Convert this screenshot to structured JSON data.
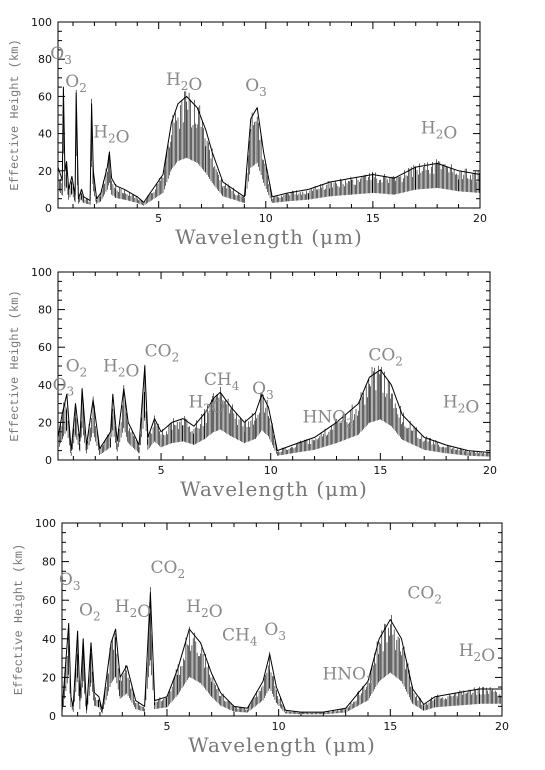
{
  "chart_data": [
    {
      "type": "line",
      "xlabel": "Wavelength (μm)",
      "ylabel": "Effective Height (km)",
      "xlim": [
        0.3,
        20
      ],
      "ylim": [
        0,
        100
      ],
      "xticks": [
        5,
        10,
        15,
        20
      ],
      "yticks": [
        0,
        20,
        40,
        60,
        80,
        100
      ],
      "series": [
        {
          "x": [
            0.3,
            0.5,
            0.55,
            0.62,
            0.7,
            0.8,
            0.95,
            1.1,
            1.15,
            1.25,
            1.4,
            1.5,
            1.8,
            1.87,
            1.95,
            2.1,
            2.3,
            2.6,
            2.7,
            2.8,
            3.0,
            3.4,
            4.0,
            4.3,
            4.6,
            5.2,
            5.6,
            5.9,
            6.3,
            6.8,
            7.2,
            7.5,
            8.0,
            9.0,
            9.3,
            9.6,
            9.9,
            10.3,
            11,
            12,
            13,
            14,
            15,
            16,
            17,
            18,
            19,
            20
          ],
          "y": [
            22,
            15,
            65,
            20,
            25,
            10,
            17,
            7,
            62,
            5,
            10,
            6,
            4,
            56,
            20,
            5,
            8,
            22,
            30,
            16,
            12,
            10,
            6,
            3,
            8,
            18,
            46,
            56,
            60,
            54,
            42,
            30,
            14,
            6,
            48,
            54,
            30,
            6,
            8,
            10,
            14,
            16,
            18,
            16,
            22,
            24,
            20,
            18
          ]
        }
      ],
      "annotations": [
        {
          "text": "O3",
          "x": 0.5,
          "y": 80
        },
        {
          "text": "O2",
          "x": 1.2,
          "y": 65
        },
        {
          "text": "H2O",
          "x": 2.5,
          "y": 38
        },
        {
          "text": "H2O",
          "x": 5.9,
          "y": 66
        },
        {
          "text": "O3",
          "x": 9.6,
          "y": 63
        },
        {
          "text": "H2O",
          "x": 17.8,
          "y": 40
        }
      ]
    },
    {
      "type": "line",
      "xlabel": "Wavelength (μm)",
      "ylabel": "Effective Height (km)",
      "xlim": [
        0.3,
        20
      ],
      "ylim": [
        0,
        100
      ],
      "xticks": [
        5,
        10,
        15,
        20
      ],
      "yticks": [
        0,
        20,
        40,
        60,
        80,
        100
      ],
      "series": [
        {
          "x": [
            0.3,
            0.5,
            0.7,
            0.9,
            1.1,
            1.3,
            1.4,
            1.6,
            1.9,
            2.2,
            2.7,
            2.8,
            3.0,
            3.3,
            3.5,
            4.0,
            4.26,
            4.4,
            4.7,
            5.0,
            5.5,
            6.0,
            6.5,
            7.0,
            7.4,
            7.7,
            8.2,
            8.8,
            9.3,
            9.6,
            9.9,
            10.3,
            11,
            12,
            13,
            14,
            14.5,
            15,
            15.5,
            16,
            17,
            18,
            19,
            20
          ],
          "y": [
            12,
            25,
            35,
            5,
            30,
            10,
            38,
            8,
            32,
            6,
            15,
            35,
            10,
            38,
            20,
            8,
            50,
            12,
            22,
            15,
            20,
            22,
            18,
            25,
            33,
            36,
            28,
            20,
            25,
            35,
            28,
            5,
            8,
            12,
            20,
            30,
            44,
            48,
            40,
            24,
            12,
            8,
            5,
            4
          ]
        }
      ],
      "annotations": [
        {
          "text": "O2",
          "x": 1.2,
          "y": 47
        },
        {
          "text": "O3",
          "x": 0.6,
          "y": 37
        },
        {
          "text": "H2O",
          "x": 2.9,
          "y": 47
        },
        {
          "text": "CO2",
          "x": 4.8,
          "y": 55
        },
        {
          "text": "H2O",
          "x": 6.8,
          "y": 28
        },
        {
          "text": "CH4",
          "x": 7.5,
          "y": 40
        },
        {
          "text": "O3",
          "x": 9.7,
          "y": 35
        },
        {
          "text": "HNO3",
          "x": 12.0,
          "y": 20
        },
        {
          "text": "CO2",
          "x": 15.0,
          "y": 53
        },
        {
          "text": "H2O",
          "x": 18.4,
          "y": 28
        }
      ]
    },
    {
      "type": "line",
      "xlabel": "Wavelength (μm)",
      "ylabel": "Effective Height (km)",
      "xlim": [
        0.3,
        20
      ],
      "ylim": [
        0,
        100
      ],
      "xticks": [
        5,
        10,
        15,
        20
      ],
      "yticks": [
        0,
        20,
        40,
        60,
        80,
        100
      ],
      "series": [
        {
          "x": [
            0.3,
            0.6,
            0.7,
            0.8,
            1.0,
            1.1,
            1.25,
            1.4,
            1.6,
            1.75,
            1.95,
            2.1,
            2.5,
            2.7,
            2.9,
            3.2,
            3.6,
            4.0,
            4.26,
            4.45,
            5.0,
            5.5,
            6.0,
            6.5,
            7.0,
            7.4,
            8.0,
            8.6,
            9.3,
            9.6,
            9.9,
            10.3,
            11,
            12,
            13,
            14,
            14.5,
            15,
            15.5,
            16,
            16.5,
            17,
            18,
            19,
            20
          ],
          "y": [
            2,
            48,
            10,
            5,
            44,
            8,
            40,
            3,
            38,
            12,
            10,
            3,
            38,
            45,
            20,
            26,
            8,
            5,
            64,
            8,
            10,
            25,
            45,
            38,
            22,
            12,
            5,
            4,
            18,
            32,
            15,
            3,
            2,
            2,
            4,
            18,
            40,
            50,
            40,
            14,
            6,
            10,
            12,
            14,
            14
          ]
        }
      ],
      "annotations": [
        {
          "text": "O3",
          "x": 0.7,
          "y": 68
        },
        {
          "text": "O2",
          "x": 1.6,
          "y": 52
        },
        {
          "text": "H2O",
          "x": 3.2,
          "y": 54
        },
        {
          "text": "CO2",
          "x": 4.8,
          "y": 74
        },
        {
          "text": "H2O",
          "x": 6.4,
          "y": 54
        },
        {
          "text": "CH4",
          "x": 8.0,
          "y": 39
        },
        {
          "text": "O3",
          "x": 9.9,
          "y": 42
        },
        {
          "text": "HNO3",
          "x": 12.5,
          "y": 19
        },
        {
          "text": "CO2",
          "x": 16.3,
          "y": 61
        },
        {
          "text": "H2O",
          "x": 18.6,
          "y": 31
        }
      ]
    }
  ]
}
